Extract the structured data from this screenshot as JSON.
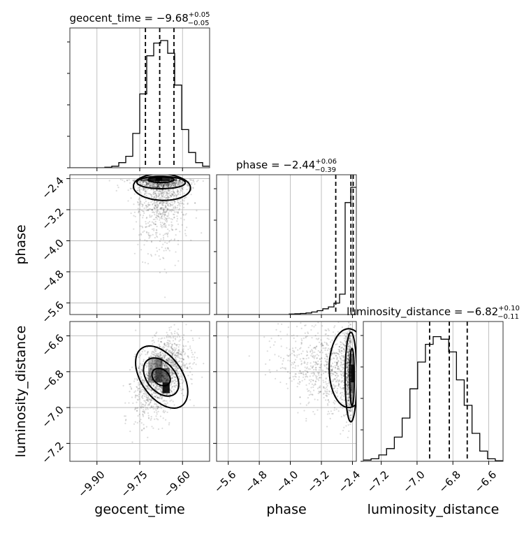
{
  "chart_data": {
    "type": "corner",
    "parameters": [
      "geocent_time",
      "phase",
      "luminosity_distance"
    ],
    "axis_labels": {
      "x": [
        "geocent_time",
        "phase",
        "luminosity_distance"
      ],
      "y": [
        "phase",
        "luminosity_distance"
      ]
    },
    "titles": [
      {
        "name": "geocent_time",
        "prefix": "geocent_time = ",
        "median": "−9.68",
        "upper": "+0.05",
        "lower": "−0.05"
      },
      {
        "name": "phase",
        "prefix": "phase = ",
        "median": "−2.44",
        "upper": "+0.06",
        "lower": "−0.39"
      },
      {
        "name": "luminosity_distance",
        "prefix": "luminosity_distance = ",
        "median": "−6.82",
        "upper": "+0.10",
        "lower": "−0.11"
      }
    ],
    "ranges": {
      "geocent_time": [
        -9.995,
        -9.505
      ],
      "phase": [
        -5.9,
        -2.3
      ],
      "luminosity_distance": [
        -7.3,
        -6.52
      ]
    },
    "ticks": {
      "geocent_time": {
        "values": [
          -9.9,
          -9.75,
          -9.6
        ],
        "labels": [
          "−9.90",
          "−9.75",
          "−9.60"
        ]
      },
      "phase": {
        "values": [
          -5.6,
          -4.8,
          -4.0,
          -3.2,
          -2.4
        ],
        "labels": [
          "−5.6",
          "−4.8",
          "−4.0",
          "−3.2",
          "−2.4"
        ]
      },
      "luminosity_distance": {
        "values": [
          -7.2,
          -7.0,
          -6.8,
          -6.6
        ],
        "labels": [
          "−7.2",
          "−7.0",
          "−6.8",
          "−6.6"
        ]
      }
    },
    "quantiles": {
      "geocent_time": [
        -9.73,
        -9.68,
        -9.63
      ],
      "phase": [
        -2.83,
        -2.44,
        -2.38
      ],
      "luminosity_distance": [
        -6.93,
        -6.82,
        -6.72
      ]
    },
    "histograms": {
      "geocent_time": [
        0,
        0,
        0,
        0,
        0,
        0.004,
        0.012,
        0.04,
        0.09,
        0.27,
        0.58,
        0.88,
        0.98,
        1.0,
        0.9,
        0.65,
        0.3,
        0.12,
        0.04,
        0.012
      ],
      "phase": [
        0,
        0,
        0,
        0,
        0,
        0,
        0,
        0,
        0,
        0,
        0,
        0,
        0,
        0.004,
        0.006,
        0.008,
        0.012,
        0.02,
        0.03,
        0.045,
        0.06,
        0.09,
        0.16,
        0.88,
        1.0
      ],
      "luminosity_distance": [
        0.01,
        0.02,
        0.05,
        0.1,
        0.19,
        0.34,
        0.57,
        0.78,
        0.92,
        0.98,
        0.96,
        0.86,
        0.64,
        0.44,
        0.22,
        0.08,
        0.02,
        0.005
      ]
    },
    "grid": true
  }
}
